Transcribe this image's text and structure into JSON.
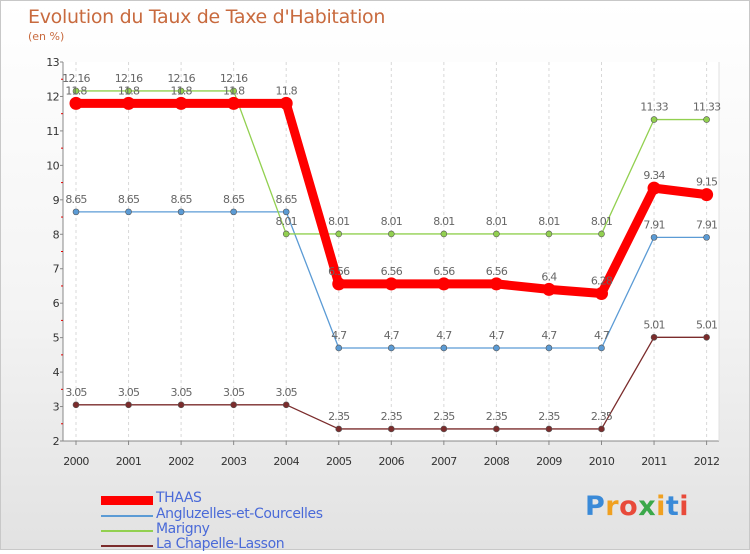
{
  "title": "Evolution du Taux de Taxe d'Habitation",
  "unit": "(en %)",
  "logo": {
    "text": "Proxiti",
    "letters": [
      "P",
      "r",
      "o",
      "x",
      "i",
      "t",
      "i"
    ],
    "colors": [
      "#3a8ad8",
      "#f0a020",
      "#e84a3a",
      "#3aa84a",
      "#f0a020",
      "#3a8ad8",
      "#e84a3a"
    ]
  },
  "chart_data": {
    "type": "line",
    "x": [
      "2000",
      "2001",
      "2002",
      "2003",
      "2004",
      "2005",
      "2006",
      "2007",
      "2008",
      "2009",
      "2010",
      "2011",
      "2012"
    ],
    "ylim": [
      2,
      13
    ],
    "yticks": [
      "2",
      "3",
      "4",
      "5",
      "6",
      "7",
      "8",
      "9",
      "10",
      "11",
      "12",
      "13"
    ],
    "grid": "vertical dashed",
    "legend_position": "bottom-left",
    "series": [
      {
        "name": "THAAS",
        "color": "#ff0000",
        "values": [
          11.8,
          11.8,
          11.8,
          11.8,
          11.8,
          6.56,
          6.56,
          6.56,
          6.56,
          6.4,
          6.28,
          9.34,
          9.15
        ],
        "labels": [
          "11.8",
          "11.8",
          "11.8",
          "11.8",
          "11.8",
          "6.56",
          "6.56",
          "6.56",
          "6.56",
          "6.4",
          "6.28",
          "9.34",
          "9.15"
        ]
      },
      {
        "name": "Angluzelles-et-Courcelles",
        "color": "#5b9bd5",
        "values": [
          8.65,
          8.65,
          8.65,
          8.65,
          8.65,
          4.7,
          4.7,
          4.7,
          4.7,
          4.7,
          4.7,
          7.91,
          7.91
        ],
        "labels": [
          "8.65",
          "8.65",
          "8.65",
          "8.65",
          "8.65",
          "4.7",
          "4.7",
          "4.7",
          "4.7",
          "4.7",
          "4.7",
          "7.91",
          "7.91"
        ]
      },
      {
        "name": "Marigny",
        "color": "#92d050",
        "values": [
          12.16,
          12.16,
          12.16,
          12.16,
          8.01,
          8.01,
          8.01,
          8.01,
          8.01,
          8.01,
          8.01,
          11.33,
          11.33
        ],
        "labels": [
          "12.16",
          "12.16",
          "12.16",
          "12.16",
          "8.01",
          "8.01",
          "8.01",
          "8.01",
          "8.01",
          "8.01",
          "8.01",
          "11.33",
          "11.33"
        ]
      },
      {
        "name": "La Chapelle-Lasson",
        "color": "#7b2c2c",
        "values": [
          3.05,
          3.05,
          3.05,
          3.05,
          3.05,
          2.35,
          2.35,
          2.35,
          2.35,
          2.35,
          2.35,
          5.01,
          5.01
        ],
        "labels": [
          "3.05",
          "3.05",
          "3.05",
          "3.05",
          "3.05",
          "2.35",
          "2.35",
          "2.35",
          "2.35",
          "2.35",
          "2.35",
          "5.01",
          "5.01"
        ]
      }
    ]
  }
}
